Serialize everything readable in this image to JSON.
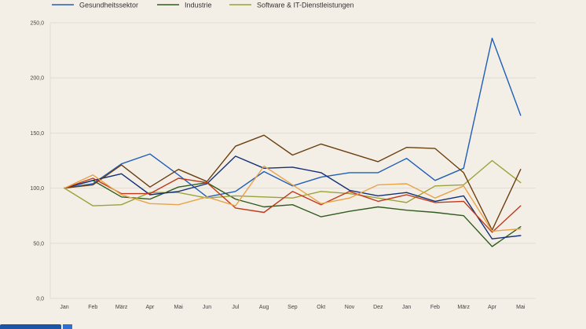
{
  "chart_data": {
    "type": "line",
    "title": "",
    "xlabel": "",
    "ylabel": "",
    "categories": [
      "Jan",
      "Feb",
      "März",
      "Apr",
      "Mai",
      "Jun",
      "Jul",
      "Aug",
      "Sep",
      "Okt",
      "Nov",
      "Dez",
      "Jan",
      "Feb",
      "März",
      "Apr",
      "Mai"
    ],
    "ylim": [
      0,
      250
    ],
    "yticks": [
      "0,0",
      "50,0",
      "100,0",
      "150,0",
      "200,0",
      "250,0"
    ],
    "grid": true,
    "legend_position": "top-left",
    "series": [
      {
        "name": "Gesundheitssektor",
        "color": "#1f5fb8",
        "values": [
          100,
          104,
          122,
          131,
          112,
          92,
          97,
          115,
          102,
          110,
          114,
          114,
          127,
          107,
          118,
          236,
          166
        ]
      },
      {
        "name": "Industrie",
        "color": "#2f5d1e",
        "values": [
          100,
          107,
          92,
          90,
          101,
          105,
          90,
          83,
          85,
          74,
          79,
          83,
          80,
          78,
          75,
          47,
          65
        ]
      },
      {
        "name": "Software & IT-Dienstleistungen",
        "color": "#9aa23a",
        "values": [
          100,
          84,
          85,
          96,
          96,
          91,
          93,
          92,
          91,
          97,
          95,
          91,
          87,
          102,
          103,
          125,
          105
        ]
      },
      {
        "color": "#14307a",
        "values": [
          100,
          107,
          113,
          94,
          97,
          104,
          129,
          118,
          119,
          114,
          98,
          93,
          96,
          88,
          93,
          54,
          57
        ]
      },
      {
        "color": "#6b3f10",
        "values": [
          100,
          103,
          121,
          101,
          117,
          106,
          138,
          148,
          130,
          140,
          132,
          124,
          137,
          136,
          114,
          62,
          117
        ]
      },
      {
        "color": "#c0391b",
        "values": [
          100,
          109,
          95,
          95,
          109,
          105,
          82,
          78,
          97,
          85,
          97,
          88,
          94,
          87,
          88,
          60,
          84
        ]
      },
      {
        "color": "#e8a24a",
        "values": [
          100,
          112,
          94,
          86,
          85,
          92,
          84,
          120,
          103,
          86,
          91,
          103,
          104,
          91,
          102,
          61,
          63
        ]
      }
    ]
  }
}
